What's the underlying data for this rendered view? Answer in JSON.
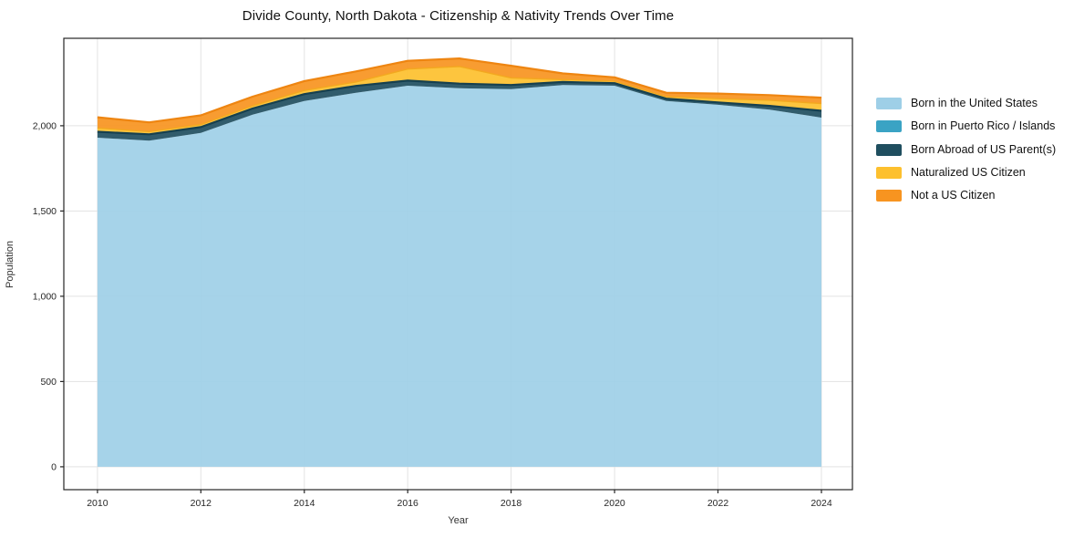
{
  "chart_data": {
    "type": "area",
    "stacked": true,
    "title": "Divide County, North Dakota - Citizenship & Nativity Trends Over Time",
    "xlabel": "Year",
    "ylabel": "Population",
    "grid": true,
    "legend_position": "right-outside",
    "x": [
      2010,
      2011,
      2012,
      2013,
      2014,
      2015,
      2016,
      2017,
      2018,
      2019,
      2020,
      2021,
      2022,
      2023,
      2024
    ],
    "series": [
      {
        "name": "Born in the United States",
        "color": "#9ecfe7",
        "values": [
          1930,
          1913,
          1958,
          2065,
          2145,
          2194,
          2235,
          2220,
          2215,
          2239,
          2235,
          2145,
          2123,
          2095,
          2048
        ]
      },
      {
        "name": "Born in Puerto Rico / Islands",
        "color": "#3aa3c4",
        "values": [
          0,
          0,
          0,
          0,
          0,
          0,
          0,
          0,
          0,
          0,
          0,
          0,
          0,
          0,
          0
        ]
      },
      {
        "name": "Born Abroad of US Parent(s)",
        "color": "#1f4e5f",
        "edge": "#16404f",
        "edge_width": 2.2,
        "values": [
          35,
          37,
          34,
          36,
          41,
          40,
          30,
          27,
          24,
          18,
          15,
          14,
          14,
          22,
          40
        ]
      },
      {
        "name": "Naturalized US Citizen",
        "color": "#fdc02e",
        "edge": "#f3a81f",
        "edge_width": 1.4,
        "values": [
          22,
          16,
          15,
          16,
          21,
          23,
          68,
          101,
          42,
          14,
          11,
          12,
          22,
          33,
          42
        ]
      },
      {
        "name": "Not a US Citizen",
        "color": "#f79420",
        "edge": "#ee8511",
        "edge_width": 2.2,
        "values": [
          63,
          54,
          54,
          54,
          55,
          62,
          48,
          47,
          71,
          36,
          23,
          23,
          30,
          30,
          35
        ]
      }
    ],
    "xticks": {
      "values": [
        2010,
        2012,
        2014,
        2016,
        2018,
        2020,
        2022,
        2024
      ],
      "labels": [
        "2010",
        "2012",
        "2014",
        "2016",
        "2018",
        "2020",
        "2022",
        "2024"
      ]
    },
    "yticks": {
      "values": [
        0,
        500,
        1000,
        1500,
        2000
      ],
      "labels": [
        "0",
        "500",
        "1,000",
        "1,500",
        "2,000"
      ]
    },
    "xlim": [
      2009.35,
      2024.6
    ],
    "ylim": [
      -134,
      2513
    ]
  }
}
